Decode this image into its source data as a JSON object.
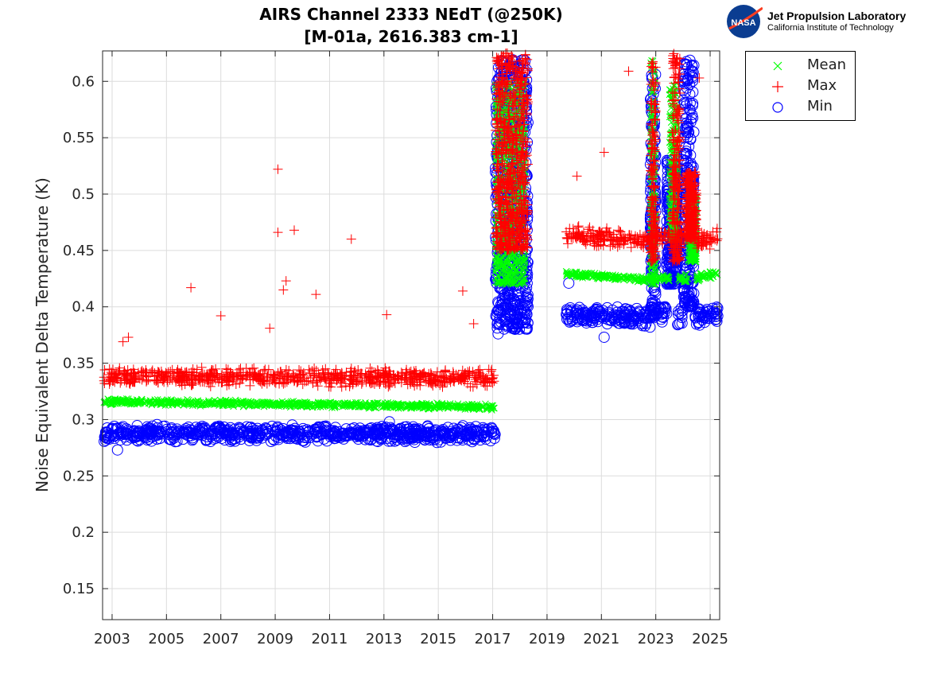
{
  "chart_data": {
    "type": "scatter",
    "title": [
      "AIRS Channel 2333 NEdT (@250K)",
      "[M-01a, 2616.383 cm-1]"
    ],
    "xlabel": "",
    "ylabel": "Noise Equivalent Delta Temperature (K)",
    "xlim": [
      2002.65,
      2025.35
    ],
    "ylim": [
      0.1225,
      0.627
    ],
    "xticks": [
      2003,
      2005,
      2007,
      2009,
      2011,
      2013,
      2015,
      2017,
      2019,
      2021,
      2023,
      2025
    ],
    "yticks": [
      0.15,
      0.2,
      0.25,
      0.3,
      0.35,
      0.4,
      0.45,
      0.5,
      0.55,
      0.6
    ],
    "grid": true,
    "legend_position": "outside-top-right",
    "series": [
      {
        "name": "Mean",
        "marker": "x",
        "color": "#00ff00",
        "segments": [
          [
            2002.7,
            2017.1,
            0.316,
            0.311,
            0.003
          ],
          [
            2017.1,
            2018.2,
            0.42,
            0.6,
            0
          ],
          [
            2019.7,
            2022.8,
            0.429,
            0.424,
            0.003
          ],
          [
            2022.8,
            2023.0,
            0.42,
            0.62,
            0
          ],
          [
            2023.0,
            2023.5,
            0.425,
            0.425,
            0.004
          ],
          [
            2023.5,
            2023.8,
            0.46,
            0.6,
            0
          ],
          [
            2023.8,
            2024.2,
            0.425,
            0.425,
            0.004
          ],
          [
            2024.2,
            2024.5,
            0.44,
            0.5,
            0
          ],
          [
            2024.5,
            2025.3,
            0.425,
            0.43,
            0.004
          ]
        ],
        "outliers": []
      },
      {
        "name": "Max",
        "marker": "+",
        "color": "#ff0000",
        "segments": [
          [
            2002.7,
            2017.1,
            0.338,
            0.337,
            0.009
          ],
          [
            2017.1,
            2018.3,
            0.45,
            0.625,
            0
          ],
          [
            2019.7,
            2022.8,
            0.464,
            0.458,
            0.009
          ],
          [
            2022.8,
            2023.0,
            0.44,
            0.62,
            0
          ],
          [
            2023.0,
            2023.6,
            0.462,
            0.462,
            0.01
          ],
          [
            2023.6,
            2023.9,
            0.44,
            0.625,
            0
          ],
          [
            2023.9,
            2024.1,
            0.46,
            0.46,
            0.01
          ],
          [
            2024.1,
            2024.5,
            0.46,
            0.52,
            0
          ],
          [
            2024.5,
            2025.3,
            0.46,
            0.462,
            0.011
          ]
        ],
        "outliers": [
          [
            2003.4,
            0.369
          ],
          [
            2003.6,
            0.373
          ],
          [
            2005.9,
            0.417
          ],
          [
            2007.0,
            0.392
          ],
          [
            2008.8,
            0.381
          ],
          [
            2009.1,
            0.522
          ],
          [
            2009.1,
            0.466
          ],
          [
            2009.3,
            0.415
          ],
          [
            2009.4,
            0.423
          ],
          [
            2009.7,
            0.468
          ],
          [
            2010.5,
            0.411
          ],
          [
            2011.8,
            0.46
          ],
          [
            2013.1,
            0.393
          ],
          [
            2015.9,
            0.414
          ],
          [
            2016.3,
            0.385
          ],
          [
            2020.1,
            0.516
          ],
          [
            2021.1,
            0.537
          ],
          [
            2022.0,
            0.609
          ],
          [
            2024.6,
            0.603
          ]
        ]
      },
      {
        "name": "Min",
        "marker": "o",
        "color": "#0000ff",
        "segments": [
          [
            2002.7,
            2017.1,
            0.288,
            0.287,
            0.008
          ],
          [
            2017.1,
            2018.3,
            0.38,
            0.62,
            0
          ],
          [
            2019.7,
            2022.8,
            0.394,
            0.39,
            0.009
          ],
          [
            2022.8,
            2023.0,
            0.39,
            0.61,
            0
          ],
          [
            2023.0,
            2023.4,
            0.395,
            0.395,
            0.01
          ],
          [
            2023.4,
            2023.8,
            0.42,
            0.53,
            0
          ],
          [
            2023.8,
            2024.0,
            0.392,
            0.392,
            0.01
          ],
          [
            2024.0,
            2024.4,
            0.4,
            0.62,
            0
          ],
          [
            2024.4,
            2025.3,
            0.392,
            0.392,
            0.01
          ]
        ],
        "outliers": [
          [
            2003.2,
            0.273
          ],
          [
            2013.2,
            0.298
          ],
          [
            2019.8,
            0.421
          ],
          [
            2021.1,
            0.373
          ],
          [
            2017.2,
            0.376
          ]
        ]
      }
    ]
  },
  "logo": {
    "line1": "Jet Propulsion Laboratory",
    "line2": "California Institute of Technology",
    "badge": "NASA"
  }
}
